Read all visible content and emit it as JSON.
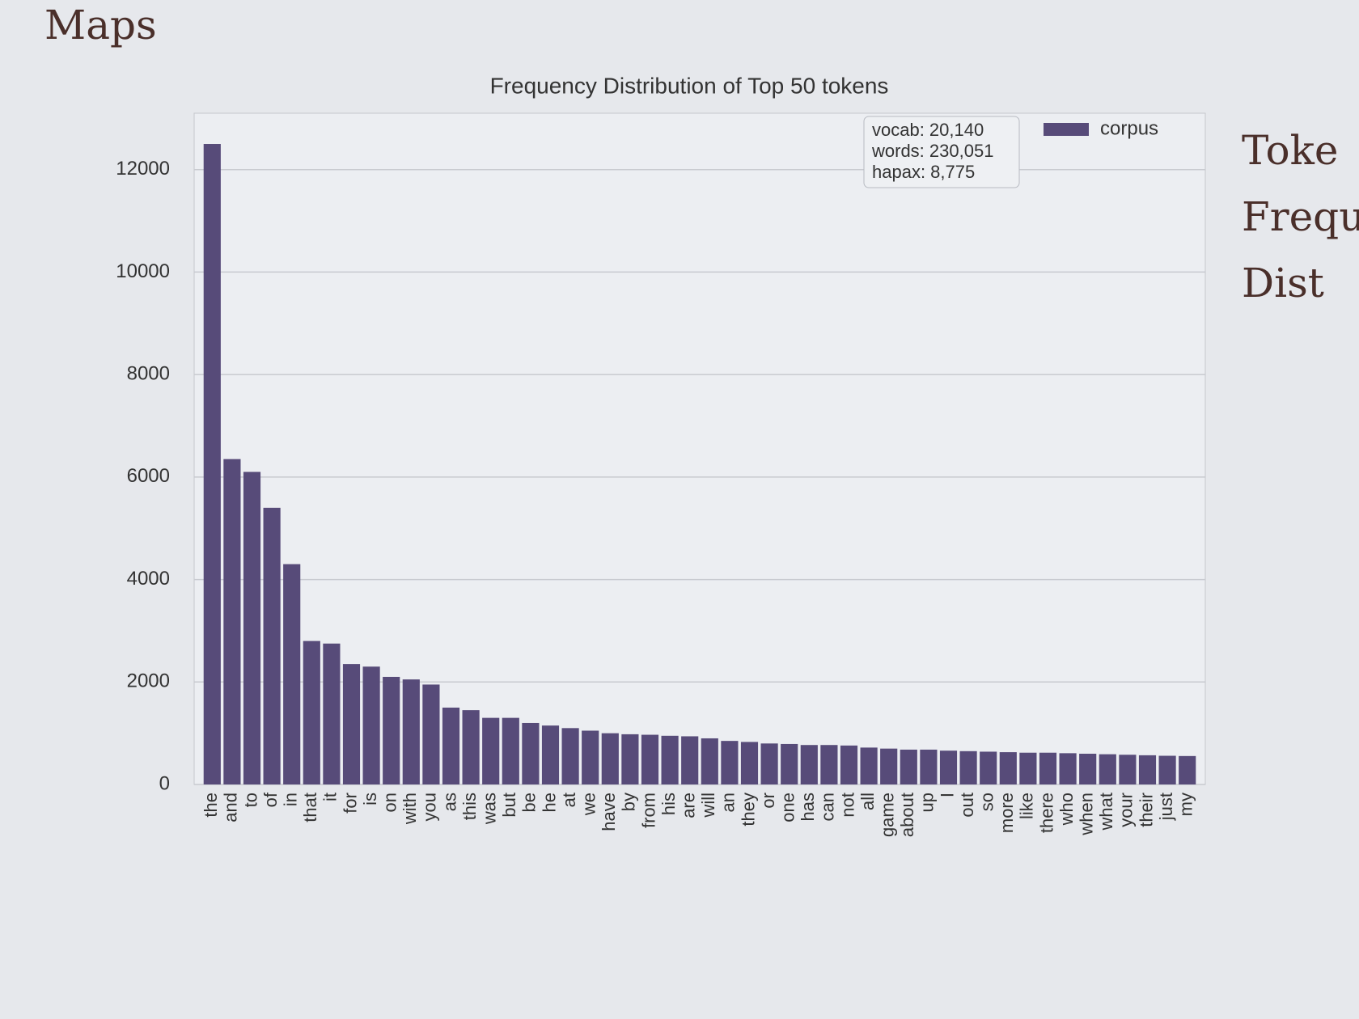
{
  "slide": {
    "title": "Maps",
    "side_text": [
      "Toke",
      "Frequ",
      "Dist"
    ]
  },
  "chart_data": {
    "type": "bar",
    "title": "Frequency Distribution of Top 50 tokens",
    "categories": [
      "the",
      "and",
      "to",
      "of",
      "in",
      "that",
      "it",
      "for",
      "is",
      "on",
      "with",
      "you",
      "as",
      "this",
      "was",
      "but",
      "be",
      "he",
      "at",
      "we",
      "have",
      "by",
      "from",
      "his",
      "are",
      "will",
      "an",
      "they",
      "or",
      "one",
      "has",
      "can",
      "not",
      "all",
      "game",
      "about",
      "up",
      "I",
      "out",
      "so",
      "more",
      "like",
      "there",
      "who",
      "when",
      "what",
      "your",
      "their",
      "just",
      "my"
    ],
    "series": [
      {
        "name": "corpus",
        "color": "#574b79",
        "values": [
          12500,
          6350,
          6100,
          5400,
          4300,
          2800,
          2750,
          2350,
          2300,
          2100,
          2050,
          1950,
          1500,
          1450,
          1300,
          1300,
          1200,
          1150,
          1100,
          1050,
          1000,
          980,
          970,
          950,
          940,
          900,
          850,
          830,
          800,
          790,
          770,
          770,
          760,
          720,
          700,
          680,
          680,
          660,
          650,
          640,
          630,
          620,
          620,
          610,
          600,
          590,
          580,
          570,
          560,
          555
        ]
      }
    ],
    "annotation": [
      "vocab: 20,140",
      "words: 230,051",
      "hapax: 8,775"
    ],
    "ylim": [
      0,
      13100
    ],
    "yticks": [
      0,
      2000,
      4000,
      6000,
      8000,
      10000,
      12000
    ],
    "grid": true,
    "legend": "upper right"
  }
}
